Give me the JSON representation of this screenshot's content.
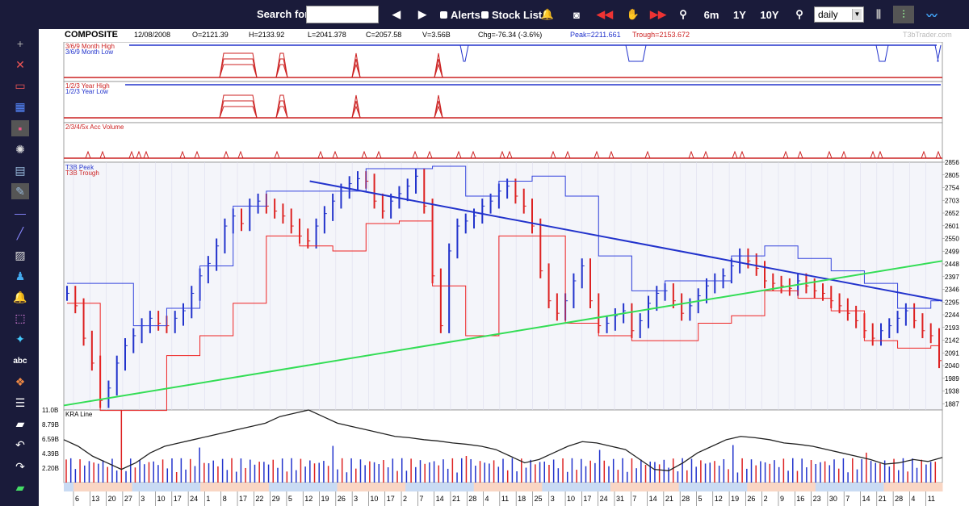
{
  "toolbar": {
    "search_label": "Search for:",
    "search_value": "",
    "alerts_label": "Alerts",
    "stocklist_label": "Stock List",
    "range_6m": "6m",
    "range_1y": "1Y",
    "range_10y": "10Y",
    "interval_selected": "daily"
  },
  "sidebar": {
    "items": [
      "plus-icon",
      "chart-x-icon",
      "chart-dash-icon",
      "chart-grid-icon",
      "chart-dot-icon",
      "magnify-icon",
      "panel-icon",
      "draw-icon",
      "line-icon",
      "diagonal-icon",
      "hatch-icon",
      "person-icon",
      "bell-icon",
      "box-icon",
      "paint-icon",
      "abc",
      "palette-icon",
      "list-icon",
      "stripe-icon",
      "undo-icon",
      "redo-icon",
      "eraser-icon"
    ],
    "text_tool": "abc"
  },
  "info": {
    "symbol": "COMPOSITE",
    "date": "12/08/2008",
    "open": "O=2121.39",
    "high": "H=2133.92",
    "low": "L=2041.378",
    "close": "C=2057.58",
    "volume": "V=3.56B",
    "change": "Chg=-76.34 (-3.6%)",
    "peak": "Peak=2211.661",
    "trough": "Trough=2153.672",
    "watermark": "T3bTrader.com"
  },
  "panels": {
    "p1_label_a": "3/6/9 Month High",
    "p1_label_b": "3/6/9 Month Low",
    "p2_label_a": "1/2/3 Year High",
    "p2_label_b": "1/2/3 Year Low",
    "p3_label": "2/3/4/5x Acc Volume",
    "main_label_a": "T3B Peak",
    "main_label_b": "T3B Trough",
    "vol_label": "KRA Line"
  },
  "chart_data": {
    "type": "line",
    "price_axis": [
      "2856",
      "2805",
      "2754",
      "2703",
      "2652",
      "2601",
      "2550",
      "2499",
      "2448",
      "2397",
      "2346",
      "2295",
      "2244",
      "2193",
      "2142",
      "2091",
      "2040",
      "1989",
      "1938",
      "1887"
    ],
    "price_axis_numeric": [
      2856,
      2805,
      2754,
      2703,
      2652,
      2601,
      2550,
      2499,
      2448,
      2397,
      2346,
      2295,
      2244,
      2193,
      2142,
      2091,
      2040,
      1989,
      1938,
      1887
    ],
    "price_ylim": [
      1862,
      2856
    ],
    "volume_axis": [
      "11.0B",
      "8.79B",
      "6.59B",
      "4.39B",
      "2.20B"
    ],
    "volume_axis_numeric": [
      11.0,
      8.79,
      6.59,
      4.39,
      2.2
    ],
    "volume_ylim": [
      0,
      11.0
    ],
    "x_ticks": [
      "6",
      "13",
      "20",
      "27",
      "3",
      "10",
      "17",
      "24",
      "1",
      "8",
      "17",
      "22",
      "29",
      "5",
      "12",
      "19",
      "26",
      "3",
      "10",
      "17",
      "2",
      "7",
      "14",
      "21",
      "28",
      "4",
      "11",
      "18",
      "25",
      "3",
      "10",
      "17",
      "24",
      "31",
      "7",
      "14",
      "21",
      "28",
      "5",
      "12",
      "19",
      "26",
      "2",
      "9",
      "16",
      "23",
      "30",
      "7",
      "14",
      "21",
      "28",
      "4",
      "11"
    ],
    "close_series": [
      2330,
      2280,
      2150,
      2050,
      1900,
      1950,
      2050,
      2120,
      2160,
      2200,
      2230,
      2210,
      2200,
      2230,
      2260,
      2330,
      2400,
      2450,
      2520,
      2600,
      2640,
      2610,
      2680,
      2700,
      2680,
      2660,
      2640,
      2600,
      2560,
      2540,
      2600,
      2650,
      2700,
      2740,
      2770,
      2790,
      2780,
      2700,
      2660,
      2700,
      2730,
      2760,
      2800,
      2680,
      2400,
      2200,
      2500,
      2600,
      2620,
      2640,
      2680,
      2700,
      2740,
      2760,
      2720,
      2680,
      2600,
      2420,
      2300,
      2250,
      2300,
      2380,
      2440,
      2300,
      2200,
      2210,
      2240,
      2260,
      2180,
      2220,
      2290,
      2330,
      2340,
      2300,
      2250,
      2280,
      2320,
      2360,
      2380,
      2400,
      2440,
      2480,
      2460,
      2430,
      2380,
      2370,
      2360,
      2350,
      2380,
      2360,
      2340,
      2330,
      2300,
      2280,
      2250,
      2220,
      2180,
      2150,
      2180,
      2200,
      2230,
      2260,
      2220,
      2180,
      2160,
      2060
    ],
    "trend_lines": [
      {
        "name": "",
        "color": "#2233cc",
        "from": [
          0.28,
          2780
        ],
        "to": [
          1.0,
          2300
        ]
      },
      {
        "name": "",
        "color": "#33dd55",
        "from": [
          0.0,
          1880
        ],
        "to": [
          1.0,
          2460
        ]
      }
    ],
    "kra_line": [
      6.5,
      5.5,
      4.0,
      3.0,
      2.0,
      3.0,
      4.5,
      5.5,
      6.0,
      6.5,
      7.0,
      7.5,
      8.0,
      8.5,
      9.0,
      10.0,
      10.5,
      11.0,
      10.0,
      9.0,
      8.5,
      8.0,
      7.5,
      7.0,
      6.8,
      6.5,
      6.3,
      6.0,
      5.8,
      5.5,
      5.0,
      4.0,
      3.0,
      3.5,
      4.5,
      5.5,
      6.2,
      6.0,
      5.5,
      5.0,
      3.5,
      2.0,
      1.8,
      3.0,
      4.5,
      5.5,
      6.5,
      7.0,
      6.8,
      6.5,
      6.0,
      5.8,
      5.5,
      5.0,
      4.5,
      4.0,
      3.5,
      2.8,
      3.0,
      3.5,
      3.2,
      3.8
    ]
  }
}
